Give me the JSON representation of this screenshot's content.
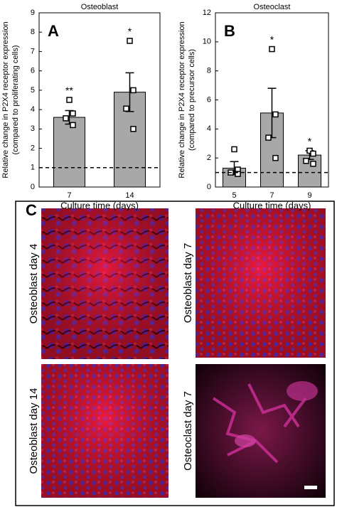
{
  "chart_data": [
    {
      "type": "bar",
      "panel_label": "A",
      "title": "Osteoblast",
      "ylabel": [
        "Relative change in P2X4 receptor expression",
        "(compared to proliferating cells)"
      ],
      "xlabel": "Culture time (days)",
      "categories": [
        "7",
        "14"
      ],
      "values": [
        3.6,
        4.9
      ],
      "errors": [
        0.35,
        1.0
      ],
      "points": [
        [
          4.5,
          3.8,
          3.55,
          3.2
        ],
        [
          7.55,
          5.0,
          4.05,
          3.0
        ]
      ],
      "annotations": [
        "**",
        "*"
      ],
      "color": "#a8a8a8",
      "reference_line": 1,
      "ylim": [
        0,
        9
      ],
      "yticks": [
        0,
        1,
        2,
        3,
        4,
        5,
        6,
        7,
        8,
        9
      ]
    },
    {
      "type": "bar",
      "panel_label": "B",
      "title": "Osteoclast",
      "ylabel": [
        "Relative change in P2X4 receptor expression",
        "(compared to precursor cells)"
      ],
      "xlabel": "Culture time (days)",
      "categories": [
        "5",
        "7",
        "9"
      ],
      "values": [
        1.3,
        5.1,
        2.2
      ],
      "errors": [
        0.45,
        1.7,
        0.3
      ],
      "points": [
        [
          2.6,
          1.2,
          1.0,
          0.9
        ],
        [
          9.5,
          5.0,
          3.4,
          2.0
        ],
        [
          2.5,
          2.3,
          1.8,
          1.6
        ]
      ],
      "annotations": [
        null,
        "*",
        "*"
      ],
      "color": "#a8a8a8",
      "reference_line": 1,
      "ylim": [
        0,
        12
      ],
      "yticks": [
        0,
        2,
        4,
        6,
        8,
        10,
        12
      ]
    }
  ],
  "panel_c": {
    "label": "C",
    "images": [
      {
        "label": "Osteoblast day 4"
      },
      {
        "label": "Osteoblast day 7"
      },
      {
        "label": "Osteoblast day 14"
      },
      {
        "label": "Osteoclast day 7"
      }
    ]
  }
}
